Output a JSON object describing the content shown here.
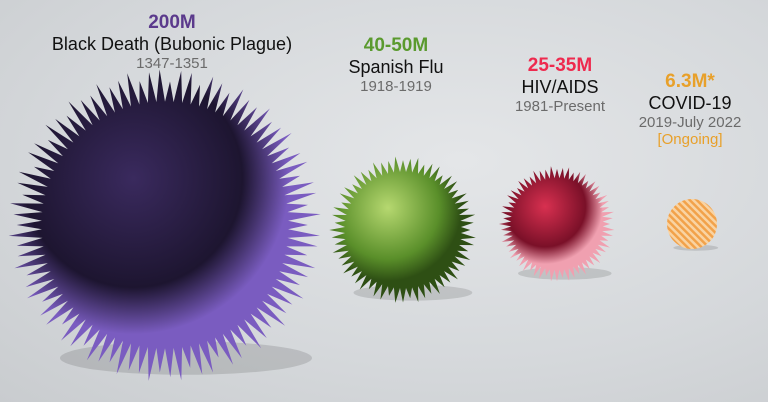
{
  "chart_data": {
    "type": "bubble",
    "unit": "deaths",
    "items": [
      {
        "value_label": "200M",
        "name": "Black Death (Bubonic Plague)",
        "years": "1347-1351",
        "deaths_millions": 200,
        "color": "#5b3a8c"
      },
      {
        "value_label": "40-50M",
        "name": "Spanish Flu",
        "years": "1918-1919",
        "deaths_millions": 45,
        "color": "#5a9a2e"
      },
      {
        "value_label": "25-35M",
        "name": "HIV/AIDS",
        "years": "1981-Present",
        "deaths_millions": 30,
        "color": "#ee2a4e"
      },
      {
        "value_label": "6.3M*",
        "name": "COVID-19",
        "years": "2019-July 2022",
        "note": "[Ongoing]",
        "deaths_millions": 6.3,
        "color": "#e8a02a"
      }
    ]
  }
}
